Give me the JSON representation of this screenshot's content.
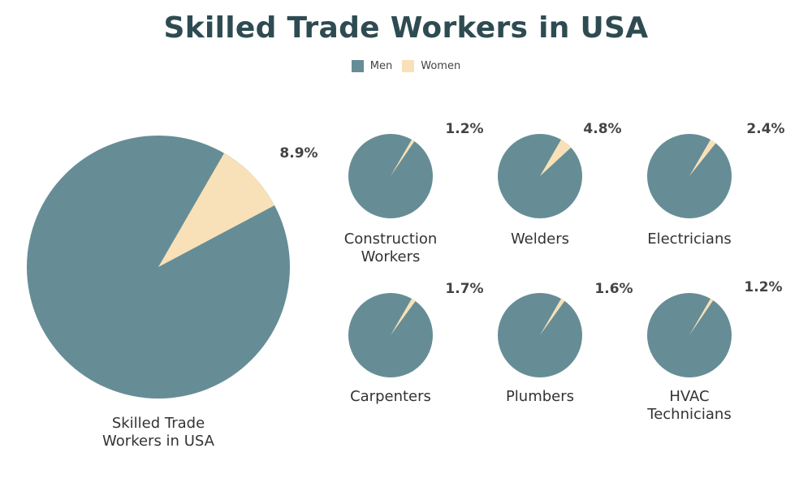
{
  "colors": {
    "men": "#668d96",
    "women": "#f8e1b8"
  },
  "chart_data": {
    "type": "pie",
    "title": "Skilled Trade Workers in USA",
    "legend": {
      "placement": "top-center",
      "entries": [
        "Men",
        "Women"
      ]
    },
    "pies": [
      {
        "label": "Skilled Trade Workers in USA",
        "label_lines": [
          "Skilled Trade",
          "Workers in USA"
        ],
        "men": 91.1,
        "women": 8.9,
        "women_label": "8.9%"
      },
      {
        "label": "Construction Workers",
        "label_lines": [
          "Construction",
          "Workers"
        ],
        "men": 98.8,
        "women": 1.2,
        "women_label": "1.2%"
      },
      {
        "label": "Welders",
        "label_lines": [
          "Welders"
        ],
        "men": 95.2,
        "women": 4.8,
        "women_label": "4.8%"
      },
      {
        "label": "Electricians",
        "label_lines": [
          "Electricians"
        ],
        "men": 97.6,
        "women": 2.4,
        "women_label": "2.4%"
      },
      {
        "label": "Carpenters",
        "label_lines": [
          "Carpenters"
        ],
        "men": 98.3,
        "women": 1.7,
        "women_label": "1.7%"
      },
      {
        "label": "Plumbers",
        "label_lines": [
          "Plumbers"
        ],
        "men": 98.4,
        "women": 1.6,
        "women_label": "1.6%"
      },
      {
        "label": "HVAC Technicians",
        "label_lines": [
          "HVAC",
          "Technicians"
        ],
        "men": 98.8,
        "women": 1.2,
        "women_label": "1.2%"
      }
    ]
  }
}
